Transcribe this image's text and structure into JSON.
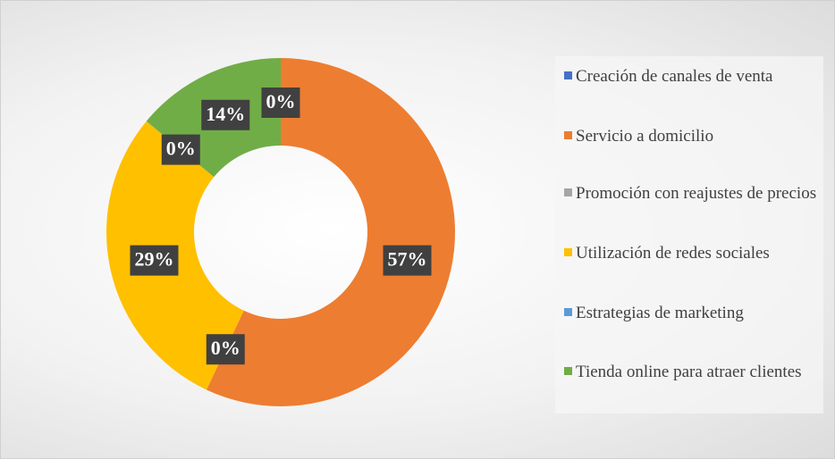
{
  "chart_data": {
    "type": "donut",
    "categories": [
      "Creación de canales de venta",
      "Servicio a domicilio",
      "Promoción con reajustes de precios",
      "Utilización de redes sociales",
      "Estrategias de marketing",
      "Tienda online para atraer clientes"
    ],
    "values": [
      0,
      57,
      0,
      29,
      0,
      14
    ],
    "value_labels": [
      "0%",
      "57%",
      "0%",
      "29%",
      "0%",
      "14%"
    ],
    "colors": [
      "#4472c4",
      "#ed7d31",
      "#a5a5a5",
      "#ffc000",
      "#5b9bd5",
      "#70ad47"
    ],
    "legend": "right"
  }
}
